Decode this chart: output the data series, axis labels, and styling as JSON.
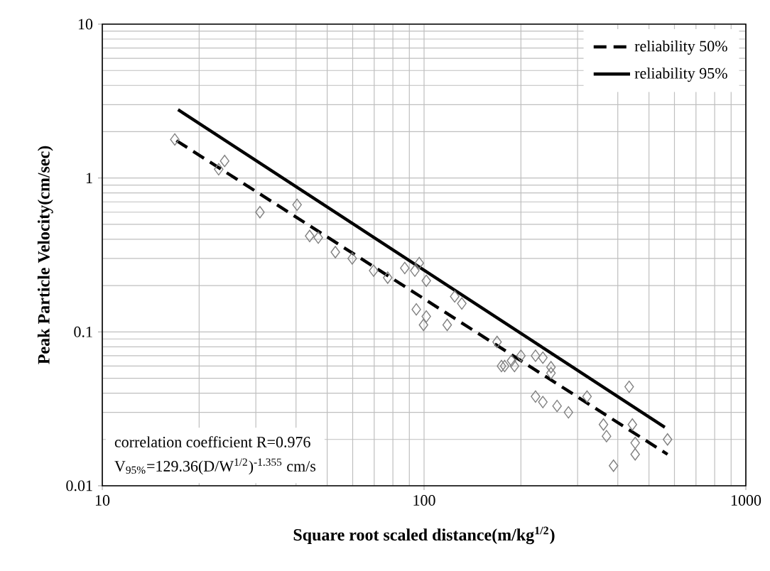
{
  "chart_data": {
    "type": "scatter",
    "xlabel": "Square root scaled distance(m/kg$^{1/2}$)",
    "ylabel": "Peak Particle Velocity(cm/sec)",
    "log": "xy",
    "xlim": [
      10,
      1000
    ],
    "ylim": [
      0.01,
      10
    ],
    "xticks": [
      10,
      100,
      1000
    ],
    "yticks": [
      0.01,
      0.1,
      1,
      10
    ],
    "grid": true,
    "legend": "top right",
    "marker": "diamond",
    "annotations": [
      "correlation  coefficient  R=0.976",
      "V$_{95%}$=129.36(D/W$^{1/2}$)$^{-1.355}$   cm/s"
    ],
    "series": [
      {
        "color": "#808080",
        "x": [
          16.8,
          24.0,
          23.0,
          30.9,
          40.3,
          44.1,
          46.9,
          53.0,
          59.8,
          69.7,
          77.1,
          87.1,
          93.6,
          96.6,
          101.6,
          94.6,
          101.6,
          99.6,
          118,
          124.5,
          131,
          168.6,
          174,
          187,
          200,
          222,
          234,
          248,
          222,
          234,
          259,
          178,
          191,
          248,
          281,
          321,
          361,
          369,
          434,
          444,
          453,
          453,
          388,
          571
        ],
        "values": [
          1.78,
          1.29,
          1.14,
          0.6,
          0.67,
          0.42,
          0.41,
          0.33,
          0.3,
          0.25,
          0.225,
          0.26,
          0.25,
          0.28,
          0.215,
          0.14,
          0.126,
          0.111,
          0.111,
          0.17,
          0.153,
          0.086,
          0.06,
          0.065,
          0.07,
          0.07,
          0.068,
          0.059,
          0.038,
          0.035,
          0.033,
          0.06,
          0.06,
          0.054,
          0.03,
          0.038,
          0.025,
          0.021,
          0.044,
          0.025,
          0.019,
          0.016,
          0.0135,
          0.02
        ]
      },
      {
        "type": "line",
        "name": "reliability   50%",
        "color": "#000000",
        "line_style": "dashed",
        "marker": "none",
        "x": [
          17,
          571
        ],
        "values": [
          1.75,
          0.016
        ]
      },
      {
        "type": "line",
        "name": "reliability   95%",
        "color": "#000000",
        "line_style": "solid",
        "marker": "none",
        "x": [
          17.2,
          560
        ],
        "values": [
          2.78,
          0.024
        ]
      }
    ]
  }
}
